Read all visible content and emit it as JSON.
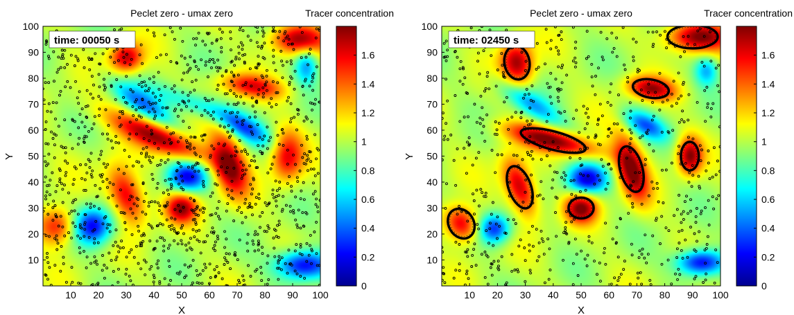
{
  "chart_data": [
    {
      "type": "heatmap",
      "title": "Peclet zero - umax zero",
      "colorbar_title": "Tracer concentration",
      "time_label": "time: 00050 s",
      "xlabel": "X",
      "ylabel": "Y",
      "xlim": [
        0,
        100
      ],
      "ylim": [
        0,
        100
      ],
      "xticks": [
        10,
        20,
        30,
        40,
        50,
        60,
        70,
        80,
        90,
        100
      ],
      "yticks": [
        10,
        20,
        30,
        40,
        50,
        60,
        70,
        80,
        90,
        100
      ],
      "clim": [
        0,
        1.8
      ],
      "colorbar_ticks": [
        0,
        0.2,
        0.4,
        0.6,
        0.8,
        1,
        1.2,
        1.4,
        1.6
      ],
      "colormap": "jet",
      "particle_color": "#000000",
      "particle_count": 1300,
      "particle_seed": 3,
      "blobs": [
        {
          "x": 30,
          "y": 88,
          "amp": 0.7,
          "sx": 4,
          "sy": 4,
          "rot": 0
        },
        {
          "x": 92,
          "y": 95,
          "amp": 0.75,
          "sx": 7,
          "sy": 4,
          "rot": 0
        },
        {
          "x": 75,
          "y": 77,
          "amp": 0.55,
          "sx": 8,
          "sy": 3,
          "rot": -10
        },
        {
          "x": 42,
          "y": 57,
          "amp": 0.75,
          "sx": 14,
          "sy": 3.5,
          "rot": -25
        },
        {
          "x": 67,
          "y": 47,
          "amp": 0.75,
          "sx": 4,
          "sy": 9,
          "rot": 15
        },
        {
          "x": 30,
          "y": 35,
          "amp": 0.7,
          "sx": 4,
          "sy": 8,
          "rot": 20
        },
        {
          "x": 50,
          "y": 30,
          "amp": 0.7,
          "sx": 4,
          "sy": 4,
          "rot": 0
        },
        {
          "x": 88,
          "y": 50,
          "amp": 0.6,
          "sx": 4,
          "sy": 7,
          "rot": 0
        },
        {
          "x": 5,
          "y": 23,
          "amp": 0.6,
          "sx": 5,
          "sy": 5,
          "rot": 0
        },
        {
          "x": 18,
          "y": 23,
          "amp": -0.8,
          "sx": 5,
          "sy": 5,
          "rot": 0
        },
        {
          "x": 52,
          "y": 42,
          "amp": -0.75,
          "sx": 5,
          "sy": 4,
          "rot": 0
        },
        {
          "x": 36,
          "y": 70,
          "amp": -0.5,
          "sx": 10,
          "sy": 3,
          "rot": -35
        },
        {
          "x": 72,
          "y": 61,
          "amp": -0.55,
          "sx": 8,
          "sy": 3,
          "rot": -30
        },
        {
          "x": 94,
          "y": 8,
          "amp": -0.85,
          "sx": 7,
          "sy": 4,
          "rot": 0
        },
        {
          "x": 95,
          "y": 85,
          "amp": -0.5,
          "sx": 3,
          "sy": 5,
          "rot": 0
        },
        {
          "x": 55,
          "y": 70,
          "amp": -0.35,
          "sx": 12,
          "sy": 3,
          "rot": -20
        }
      ],
      "clusters": []
    },
    {
      "type": "heatmap",
      "title": "Peclet zero - umax zero",
      "colorbar_title": "Tracer concentration",
      "time_label": "time: 02450 s",
      "xlabel": "X",
      "ylabel": "Y",
      "xlim": [
        0,
        100
      ],
      "ylim": [
        0,
        100
      ],
      "xticks": [
        10,
        20,
        30,
        40,
        50,
        60,
        70,
        80,
        90,
        100
      ],
      "yticks": [
        10,
        20,
        30,
        40,
        50,
        60,
        70,
        80,
        90,
        100
      ],
      "clim": [
        0,
        1.8
      ],
      "colorbar_ticks": [
        0,
        0.2,
        0.4,
        0.6,
        0.8,
        1,
        1.2,
        1.4,
        1.6
      ],
      "colormap": "jet",
      "particle_color": "#000000",
      "particle_count": 700,
      "particle_seed": 11,
      "blobs": [
        {
          "x": 27,
          "y": 86,
          "amp": 0.75,
          "sx": 4,
          "sy": 6,
          "rot": 10
        },
        {
          "x": 92,
          "y": 96,
          "amp": 0.8,
          "sx": 8,
          "sy": 4,
          "rot": 0
        },
        {
          "x": 75,
          "y": 76,
          "amp": 0.7,
          "sx": 6,
          "sy": 3,
          "rot": -10
        },
        {
          "x": 40,
          "y": 56,
          "amp": 0.8,
          "sx": 12,
          "sy": 3,
          "rot": -15
        },
        {
          "x": 68,
          "y": 45,
          "amp": 0.8,
          "sx": 3.5,
          "sy": 9,
          "rot": 15
        },
        {
          "x": 28,
          "y": 38,
          "amp": 0.75,
          "sx": 3.5,
          "sy": 8,
          "rot": 20
        },
        {
          "x": 50,
          "y": 30,
          "amp": 0.75,
          "sx": 4,
          "sy": 4,
          "rot": 0
        },
        {
          "x": 89,
          "y": 50,
          "amp": 0.75,
          "sx": 3,
          "sy": 5,
          "rot": 0
        },
        {
          "x": 7,
          "y": 24,
          "amp": 0.7,
          "sx": 4,
          "sy": 5,
          "rot": 30
        },
        {
          "x": 19,
          "y": 22,
          "amp": -0.7,
          "sx": 4,
          "sy": 4,
          "rot": 0
        },
        {
          "x": 52,
          "y": 41,
          "amp": -0.8,
          "sx": 5,
          "sy": 4,
          "rot": 0
        },
        {
          "x": 32,
          "y": 70,
          "amp": -0.45,
          "sx": 10,
          "sy": 3,
          "rot": -35
        },
        {
          "x": 73,
          "y": 62,
          "amp": -0.55,
          "sx": 6,
          "sy": 3,
          "rot": -30
        },
        {
          "x": 93,
          "y": 9,
          "amp": -0.85,
          "sx": 6,
          "sy": 3.5,
          "rot": 0
        },
        {
          "x": 95,
          "y": 83,
          "amp": -0.45,
          "sx": 3,
          "sy": 4,
          "rot": 0
        }
      ],
      "clusters": [
        {
          "x": 27,
          "y": 86,
          "rx": 4.5,
          "ry": 6.5,
          "rot": 10
        },
        {
          "x": 90,
          "y": 96,
          "rx": 9,
          "ry": 4.5,
          "rot": 0
        },
        {
          "x": 75,
          "y": 76,
          "rx": 6.5,
          "ry": 3.5,
          "rot": -10
        },
        {
          "x": 40,
          "y": 56,
          "rx": 12,
          "ry": 3.5,
          "rot": -15
        },
        {
          "x": 68,
          "y": 45,
          "rx": 4,
          "ry": 9,
          "rot": 15
        },
        {
          "x": 28,
          "y": 38,
          "rx": 4,
          "ry": 8.5,
          "rot": 20
        },
        {
          "x": 50,
          "y": 30,
          "rx": 4.5,
          "ry": 4,
          "rot": 0
        },
        {
          "x": 89,
          "y": 50,
          "rx": 3.2,
          "ry": 5.5,
          "rot": 0
        },
        {
          "x": 7,
          "y": 24,
          "rx": 4.5,
          "ry": 6,
          "rot": 30
        }
      ]
    }
  ]
}
